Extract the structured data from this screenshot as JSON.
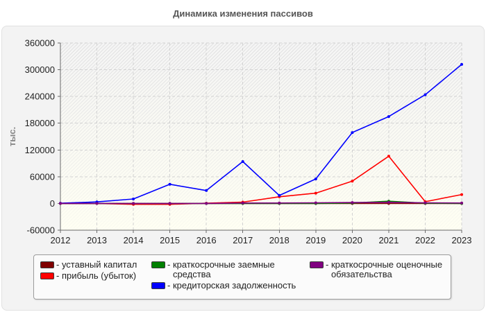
{
  "chart_data": {
    "type": "line",
    "title": "Динамика изменения пассивов",
    "ylabel": "тыс.",
    "x": [
      2012,
      2013,
      2014,
      2015,
      2016,
      2017,
      2018,
      2019,
      2020,
      2021,
      2022,
      2023
    ],
    "ylim": [
      -60000,
      360000
    ],
    "yticks": [
      -60000,
      0,
      60000,
      120000,
      180000,
      240000,
      300000,
      360000
    ],
    "grid": true,
    "legend_position": "bottom",
    "legend_prefix": "- ",
    "series": [
      {
        "name": "уставный капитал",
        "color": "#800000",
        "values": [
          10,
          10,
          10,
          10,
          10,
          10,
          10,
          10,
          10,
          10,
          10,
          10
        ]
      },
      {
        "name": "прибыль (убыток)",
        "color": "#ff0000",
        "values": [
          0,
          0,
          -2000,
          -2000,
          500,
          3000,
          15000,
          23000,
          50000,
          106000,
          4000,
          20000
        ]
      },
      {
        "name": "краткосрочные заемные средства",
        "color": "#008000",
        "values": [
          0,
          0,
          0,
          0,
          0,
          0,
          0,
          0,
          1000,
          5000,
          500,
          0
        ]
      },
      {
        "name": "кредиторская задолженность",
        "color": "#0000ff",
        "values": [
          500,
          3500,
          10000,
          43000,
          29000,
          94000,
          18000,
          55000,
          159000,
          195000,
          244000,
          312000
        ]
      },
      {
        "name": "краткосрочные оценочные обязательства",
        "color": "#800080",
        "values": [
          0,
          0,
          0,
          0,
          0,
          1000,
          1000,
          1500,
          2000,
          2500,
          1500,
          1000
        ]
      }
    ]
  }
}
